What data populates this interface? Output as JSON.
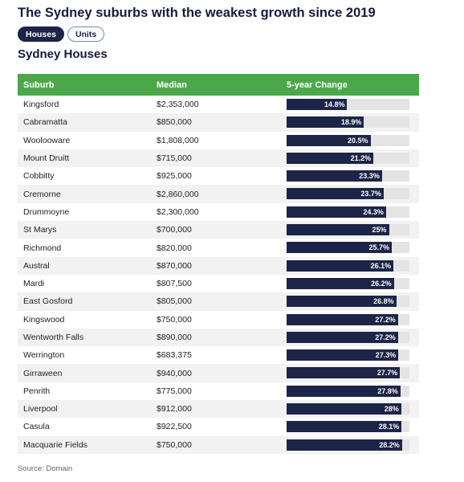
{
  "header": {
    "title": "The Sydney suburbs with the weakest growth since 2019",
    "tabs": [
      {
        "label": "Houses",
        "active": true
      },
      {
        "label": "Units",
        "active": false
      }
    ],
    "subtitle": "Sydney Houses"
  },
  "table": {
    "columns": [
      "Suburb",
      "Median",
      "5-year Change"
    ]
  },
  "colors": {
    "header_bg": "#4aa84a",
    "bar": "#1c2447",
    "track": "#e4e4e4",
    "active_tab": "#1c2447"
  },
  "chart_data": {
    "type": "table",
    "title": "The Sydney suburbs with the weakest growth since 2019",
    "subtitle": "Sydney Houses",
    "bar_max": 30,
    "rows": [
      {
        "suburb": "Kingsford",
        "median": "$2,353,000",
        "change": 14.8,
        "change_label": "14.8%"
      },
      {
        "suburb": "Cabramatta",
        "median": "$850,000",
        "change": 18.9,
        "change_label": "18.9%"
      },
      {
        "suburb": "Woolooware",
        "median": "$1,808,000",
        "change": 20.5,
        "change_label": "20.5%"
      },
      {
        "suburb": "Mount Druitt",
        "median": "$715,000",
        "change": 21.2,
        "change_label": "21.2%"
      },
      {
        "suburb": "Cobbitty",
        "median": "$925,000",
        "change": 23.3,
        "change_label": "23.3%"
      },
      {
        "suburb": "Cremorne",
        "median": "$2,860,000",
        "change": 23.7,
        "change_label": "23.7%"
      },
      {
        "suburb": "Drummoyne",
        "median": "$2,300,000",
        "change": 24.3,
        "change_label": "24.3%"
      },
      {
        "suburb": "St Marys",
        "median": "$700,000",
        "change": 25,
        "change_label": "25%"
      },
      {
        "suburb": "Richmond",
        "median": "$820,000",
        "change": 25.7,
        "change_label": "25.7%"
      },
      {
        "suburb": "Austral",
        "median": "$870,000",
        "change": 26.1,
        "change_label": "26.1%"
      },
      {
        "suburb": "Mardi",
        "median": "$807,500",
        "change": 26.2,
        "change_label": "26.2%"
      },
      {
        "suburb": "East Gosford",
        "median": "$805,000",
        "change": 26.8,
        "change_label": "26.8%"
      },
      {
        "suburb": "Kingswood",
        "median": "$750,000",
        "change": 27.2,
        "change_label": "27.2%"
      },
      {
        "suburb": "Wentworth Falls",
        "median": "$890,000",
        "change": 27.2,
        "change_label": "27.2%"
      },
      {
        "suburb": "Werrington",
        "median": "$683,375",
        "change": 27.3,
        "change_label": "27.3%"
      },
      {
        "suburb": "Girraween",
        "median": "$940,000",
        "change": 27.7,
        "change_label": "27.7%"
      },
      {
        "suburb": "Penrith",
        "median": "$775,000",
        "change": 27.8,
        "change_label": "27.8%"
      },
      {
        "suburb": "Liverpool",
        "median": "$912,000",
        "change": 28,
        "change_label": "28%"
      },
      {
        "suburb": "Casula",
        "median": "$922,500",
        "change": 28.1,
        "change_label": "28.1%"
      },
      {
        "suburb": "Macquarie Fields",
        "median": "$750,000",
        "change": 28.2,
        "change_label": "28.2%"
      }
    ]
  },
  "footer": {
    "source": "Source: Domain"
  }
}
